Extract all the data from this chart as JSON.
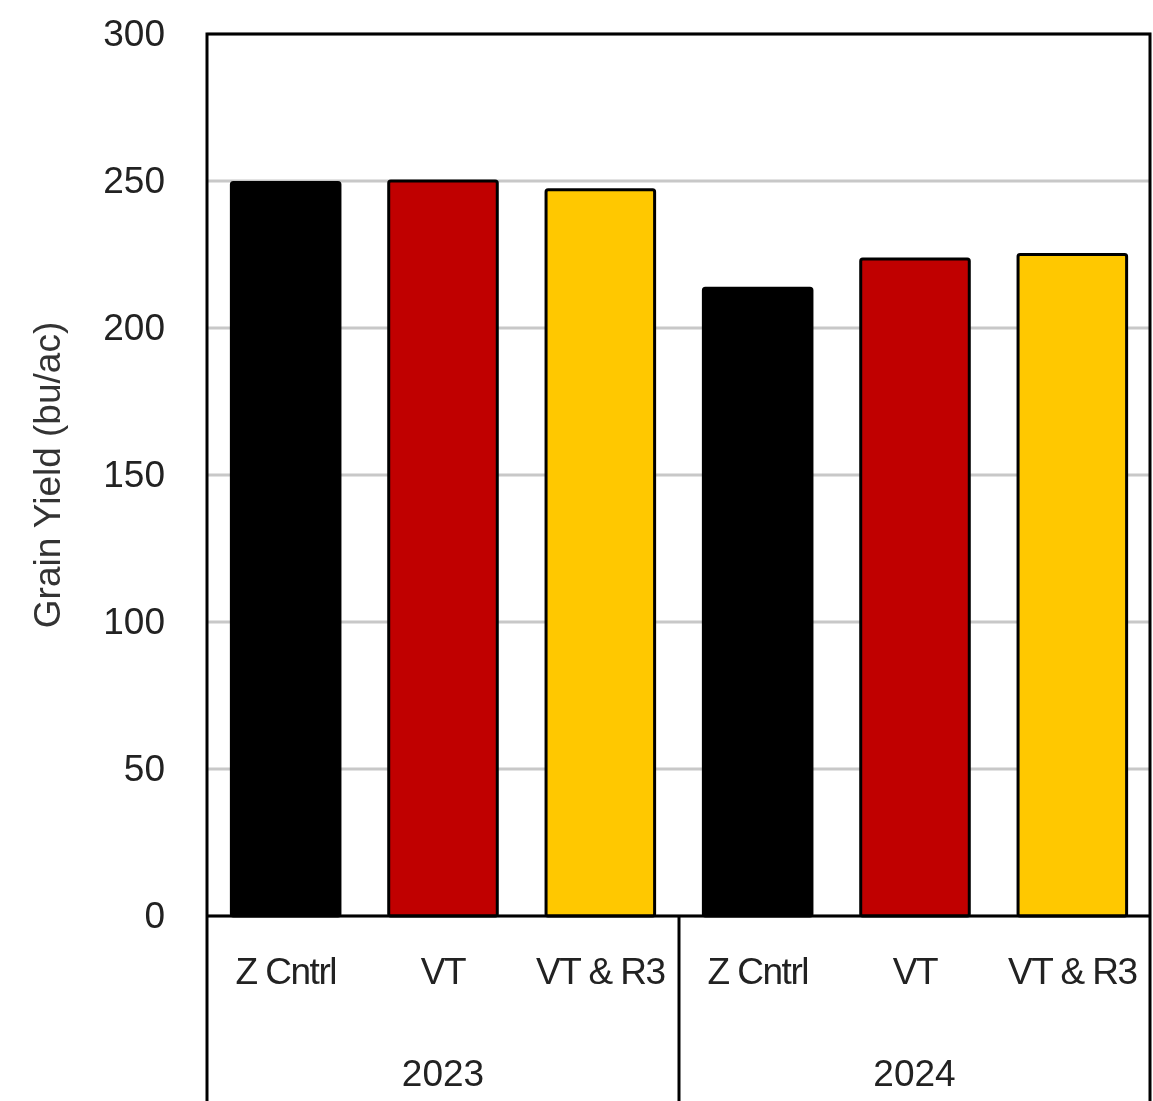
{
  "chart_data": {
    "type": "bar",
    "ylabel": "Grain Yield (bu/ac)",
    "categories": [
      "Z Cntrl",
      "VT",
      "VT & R3",
      "Z Cntrl",
      "VT",
      "VT & R3"
    ],
    "values": [
      249.5,
      250,
      247,
      213.5,
      223.5,
      225
    ],
    "colors": [
      "#000000",
      "#c00000",
      "#ffc800",
      "#000000",
      "#c00000",
      "#ffc800"
    ],
    "ylim": [
      0,
      300
    ],
    "yticks": [
      0,
      50,
      100,
      150,
      200,
      250,
      300
    ],
    "grid": "y",
    "annotations": [
      "2023",
      "2024"
    ]
  }
}
